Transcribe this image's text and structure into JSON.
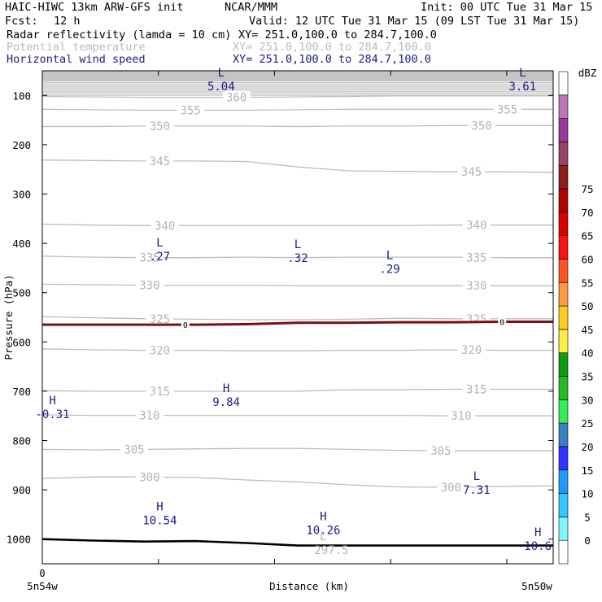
{
  "header": {
    "model": "HAIC-HIWC 13km ARW-GFS init",
    "org": "NCAR/MMM",
    "init": "Init: 00 UTC Tue 31 Mar 15",
    "fcst_label": "Fcst:",
    "fcst_value": "12 h",
    "valid": "Valid: 12 UTC Tue 31 Mar 15 (09 LST Tue 31 Mar 15)",
    "field1_name": "Radar reflectivity (lamda = 10 cm)",
    "field1_xy": "XY= 251.0,100.0 to 284.7,100.0",
    "field2_name": "Potential temperature",
    "field2_xy": "XY= 251.0,100.0 to 284.7,100.0",
    "field3_name": "Horizontal wind speed",
    "field3_xy": "XY= 251.0,100.0 to 284.7,100.0"
  },
  "colors": {
    "theta": "#bdbdbd",
    "wind_labels": "#1a1a8c",
    "freezing": "#7a0f0f",
    "terrain": "#000000"
  },
  "chart_data": {
    "type": "cross-section",
    "xlabel": "Distance (km)",
    "ylabel": "Pressure (hPa)",
    "x_left_label": "5n54w",
    "x_right_label": "5n50w",
    "x_tick_zero": "0",
    "ylim": [
      1050,
      50
    ],
    "yticks": [
      100,
      200,
      300,
      400,
      500,
      600,
      700,
      800,
      900,
      1000
    ],
    "theta_contours": [
      {
        "label": "360",
        "pressure": [
          102,
          103,
          104,
          104,
          104,
          103,
          102,
          101,
          101,
          101,
          101
        ]
      },
      {
        "label": "355",
        "pressure": [
          128,
          129,
          130,
          130,
          130,
          129,
          128,
          128,
          128,
          128,
          128
        ]
      },
      {
        "label": "350",
        "pressure": [
          163,
          163,
          162,
          162,
          162,
          163,
          162,
          162,
          161,
          161,
          161
        ]
      },
      {
        "label": "345",
        "pressure": [
          231,
          232,
          233,
          233,
          234,
          245,
          253,
          254,
          255,
          255,
          256
        ]
      },
      {
        "label": "340",
        "pressure": [
          361,
          363,
          364,
          364,
          364,
          364,
          364,
          364,
          363,
          363,
          363
        ]
      },
      {
        "label": "335",
        "pressure": [
          426,
          428,
          429,
          429,
          428,
          429,
          428,
          428,
          428,
          429,
          429
        ]
      },
      {
        "label": "330",
        "pressure": [
          483,
          484,
          485,
          485,
          485,
          486,
          486,
          486,
          486,
          486,
          486
        ]
      },
      {
        "label": "325",
        "pressure": [
          549,
          551,
          553,
          554,
          555,
          555,
          554,
          552,
          553,
          553,
          553
        ]
      },
      {
        "label": "320",
        "pressure": [
          614,
          616,
          617,
          617,
          618,
          618,
          617,
          617,
          616,
          617,
          617
        ]
      },
      {
        "label": "315",
        "pressure": [
          699,
          700,
          700,
          700,
          700,
          700,
          697,
          697,
          696,
          696,
          696
        ]
      },
      {
        "label": "310",
        "pressure": [
          748,
          749,
          749,
          749,
          749,
          749,
          749,
          749,
          750,
          750,
          750
        ]
      },
      {
        "label": "305",
        "pressure": [
          818,
          819,
          818,
          817,
          816,
          816,
          818,
          820,
          821,
          821,
          821
        ]
      },
      {
        "label": "300",
        "pressure": [
          877,
          874,
          874,
          875,
          880,
          884,
          890,
          894,
          895,
          893,
          892
        ]
      }
    ],
    "freezing_level": {
      "label": "0",
      "pressure": [
        565,
        565,
        565,
        565,
        564,
        561,
        561,
        560,
        560,
        559,
        559
      ]
    },
    "terrain": {
      "pressure": [
        1000,
        1003,
        1005,
        1004,
        1008,
        1013,
        1013,
        1013,
        1013,
        1013,
        1013
      ]
    },
    "wind_extrema": [
      {
        "kind": "L",
        "value": "5.04",
        "x": 0.35,
        "p": 70
      },
      {
        "kind": "L",
        "value": "3.61",
        "x": 0.94,
        "p": 70
      },
      {
        "kind": "L",
        "value": ".27",
        "x": 0.23,
        "p": 415
      },
      {
        "kind": "L",
        "value": ".32",
        "x": 0.5,
        "p": 418
      },
      {
        "kind": "L",
        "value": ".29",
        "x": 0.68,
        "p": 440
      },
      {
        "kind": "H",
        "value": "-0.31",
        "x": 0.02,
        "p": 735
      },
      {
        "kind": "H",
        "value": "9.84",
        "x": 0.36,
        "p": 710
      },
      {
        "kind": "L",
        "value": "7.31",
        "x": 0.85,
        "p": 888
      },
      {
        "kind": "H",
        "value": "10.54",
        "x": 0.23,
        "p": 950
      },
      {
        "kind": "H",
        "value": "10.26",
        "x": 0.55,
        "p": 970
      },
      {
        "kind": "H",
        "value": "10.6",
        "x": 0.97,
        "p": 1002
      }
    ],
    "theta_extrema": [
      {
        "kind": "L",
        "value": "297.5",
        "x": 0.55,
        "p": 1010
      }
    ],
    "colorbar": {
      "title": "dBZ",
      "levels": [
        "0",
        "5",
        "10",
        "15",
        "20",
        "25",
        "30",
        "35",
        "40",
        "45",
        "50",
        "55",
        "60",
        "65",
        "70",
        "75"
      ],
      "colors": [
        "#ffffff",
        "#7ff5ff",
        "#33c8ff",
        "#1f9bff",
        "#3333ff",
        "#3a7fbf",
        "#33ee55",
        "#22bb22",
        "#119911",
        "#ffee44",
        "#ffcc22",
        "#ff9944",
        "#ff5522",
        "#ff1111",
        "#dd0000",
        "#b30000",
        "#8c1e1e",
        "#994466",
        "#9c3a9c",
        "#bb77bb",
        "#ffffff"
      ]
    }
  }
}
